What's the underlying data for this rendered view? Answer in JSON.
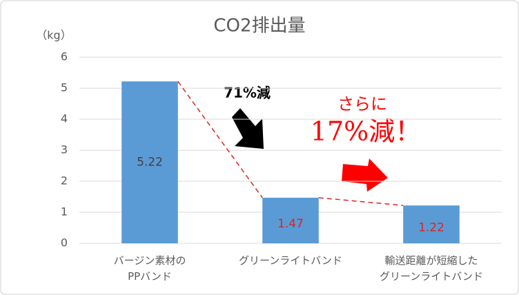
{
  "chart_data": {
    "type": "bar",
    "title": "CO2排出量",
    "y_unit": "（kg）",
    "categories": [
      "バージン素材の\nPPバンド",
      "グリーンライトバンド",
      "輸送距離が短縮した\nグリーンライトバンド"
    ],
    "values": [
      5.22,
      1.47,
      1.22
    ],
    "color": "#5b9bd5",
    "value_label_colors": [
      "#404040",
      "#e02020",
      "#e02020"
    ],
    "ylim": [
      0,
      6
    ],
    "yticks": [
      0,
      1,
      2,
      3,
      4,
      5,
      6
    ],
    "grid": true,
    "annotations": [
      "71%減",
      "さらに",
      "17%減！"
    ]
  }
}
